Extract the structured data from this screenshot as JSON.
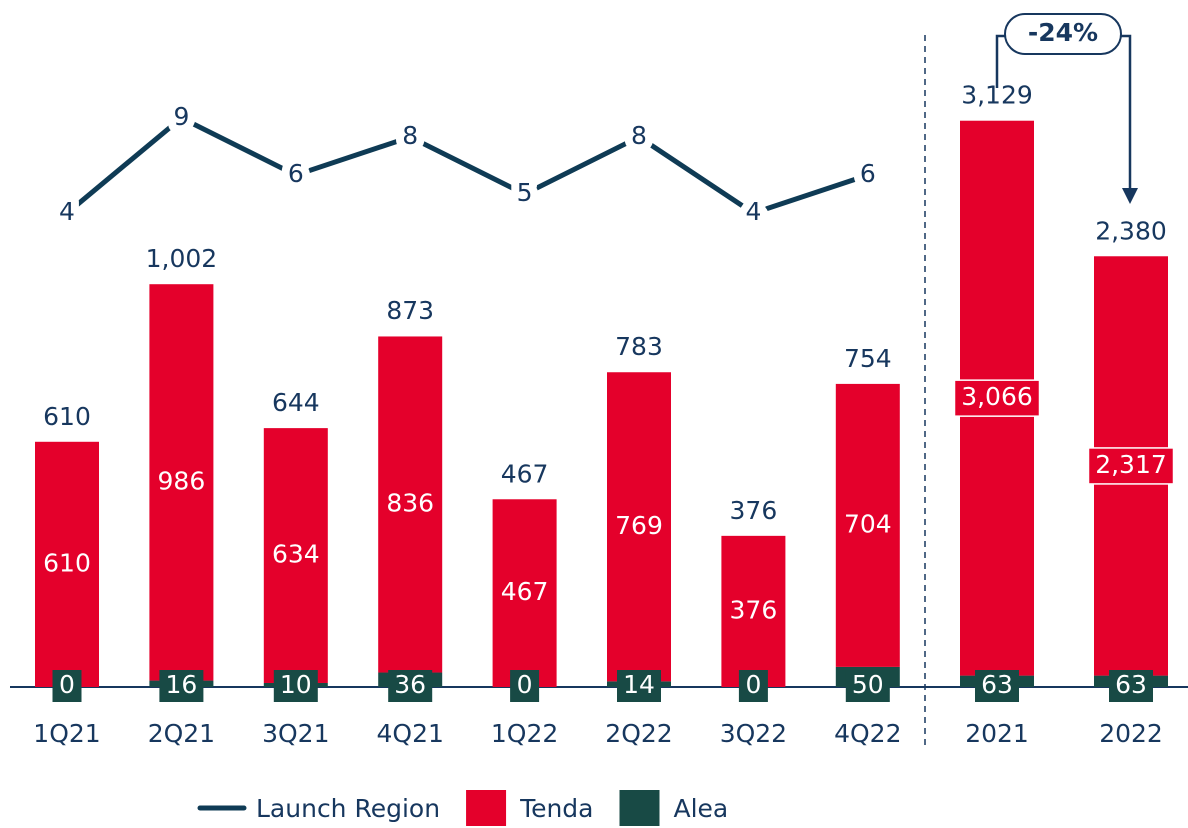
{
  "chart_data": [
    {
      "type": "bar",
      "categories": [
        "1Q21",
        "2Q21",
        "3Q21",
        "4Q21",
        "1Q22",
        "2Q22",
        "3Q22",
        "4Q22"
      ],
      "series": [
        {
          "name": "Tenda",
          "color": "#e4002b",
          "values": [
            610,
            986,
            634,
            836,
            467,
            769,
            376,
            704
          ]
        },
        {
          "name": "Alea",
          "color": "#184a45",
          "values": [
            0,
            16,
            10,
            36,
            0,
            14,
            0,
            50
          ]
        },
        {
          "name": "Launch Region",
          "type": "line",
          "axis": "y2",
          "color": "#0f3b55",
          "values": [
            4,
            9,
            6,
            8,
            5,
            8,
            4,
            6
          ]
        }
      ],
      "totals": {
        "values": [
          610,
          1002,
          644,
          873,
          467,
          783,
          376,
          754
        ],
        "value_labels": [
          "610",
          "1,002",
          "644",
          "873",
          "467",
          "783",
          "376",
          "754"
        ]
      },
      "ylim": [
        0,
        1709
      ],
      "y2lim": [
        -20.9,
        15.2
      ],
      "legend": "bottom"
    },
    {
      "type": "bar",
      "categories": [
        "2021",
        "2022"
      ],
      "series": [
        {
          "color": "#e4002b",
          "values": [
            3066,
            2317
          ],
          "value_labels": [
            "3,066",
            "2,317"
          ]
        },
        {
          "color": "#184a45",
          "values": [
            63,
            63
          ]
        }
      ],
      "totals": {
        "values": [
          3129,
          2380
        ],
        "value_labels": [
          "3,129",
          "2,380"
        ]
      },
      "ylim": [
        0,
        3796
      ],
      "annotation": "-24%"
    }
  ]
}
